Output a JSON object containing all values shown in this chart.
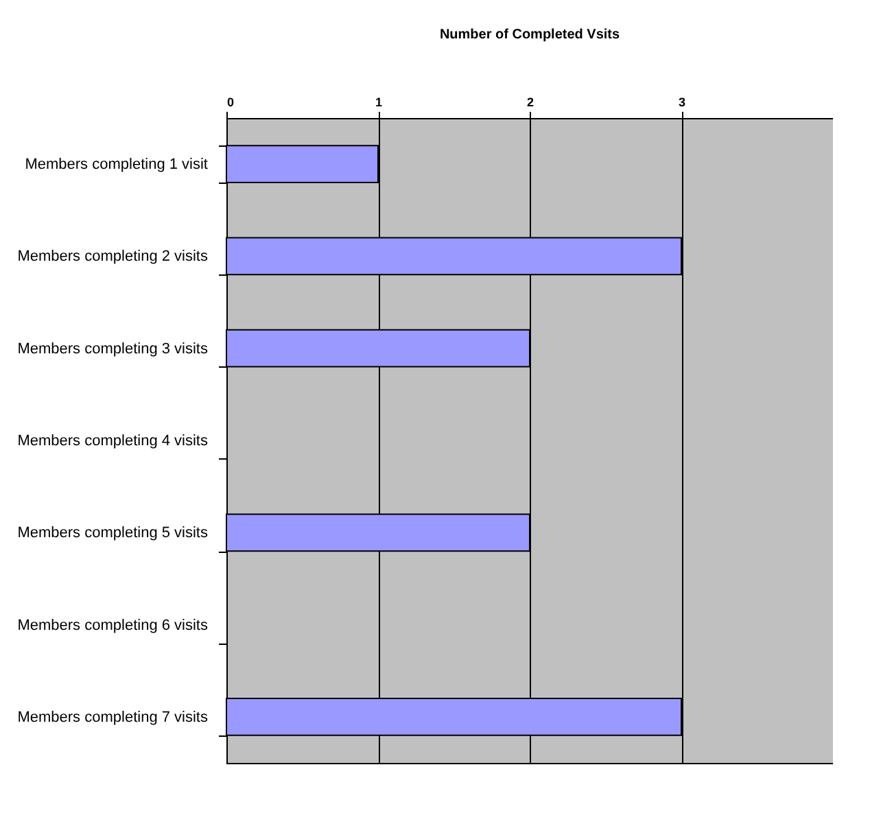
{
  "chart_data": {
    "type": "bar",
    "orientation": "horizontal",
    "title": "Number of Completed Vsits",
    "categories": [
      "Members completing 1 visit",
      "Members completing 2 visits",
      "Members completing 3 visits",
      "Members completing 4 visits",
      "Members completing 5 visits",
      "Members completing 6 visits",
      "Members completing 7 visits"
    ],
    "values": [
      1,
      3,
      2,
      0,
      2,
      0,
      3
    ],
    "color": "#9999ff",
    "xlim": [
      0,
      4
    ],
    "xticks": [
      0,
      1,
      2,
      3
    ],
    "grid": "x"
  }
}
